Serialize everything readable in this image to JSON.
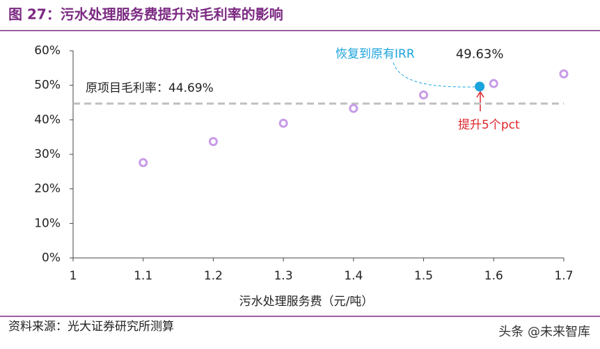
{
  "chart_data": {
    "type": "scatter",
    "title": "图 27：污水处理服务费提升对毛利率的影响",
    "x_label": "污水处理服务费（元/吨）",
    "source": "资料来源：光大证券研究所测算",
    "watermark": "头条 @未来智库",
    "xlim": [
      1,
      1.7
    ],
    "ylim": [
      0,
      60
    ],
    "xticks": [
      1,
      1.1,
      1.2,
      1.3,
      1.4,
      1.5,
      1.6,
      1.7
    ],
    "yticks": [
      {
        "value": 0,
        "label": "0%"
      },
      {
        "value": 10,
        "label": "10%"
      },
      {
        "value": 20,
        "label": "20%"
      },
      {
        "value": 30,
        "label": "30%"
      },
      {
        "value": 40,
        "label": "40%"
      },
      {
        "value": 50,
        "label": "50%"
      },
      {
        "value": 60,
        "label": "60%"
      }
    ],
    "series": [
      {
        "color": "#c79be8",
        "x": [
          1.1,
          1.2,
          1.3,
          1.4,
          1.5,
          1.6,
          1.7
        ],
        "values": [
          27.6,
          33.7,
          39.0,
          43.3,
          47.2,
          50.5,
          53.3
        ]
      },
      {
        "color": "#1aa3dc",
        "x": [
          1.58
        ],
        "values": [
          49.63
        ],
        "value_labels": [
          "49.63%"
        ]
      }
    ],
    "reference_line": {
      "value": 44.69,
      "label": "原项目毛利率：44.69%",
      "color": "#bfbfbf"
    },
    "annotations": [
      "恢复到原有IRR",
      "提升5个pct"
    ]
  }
}
